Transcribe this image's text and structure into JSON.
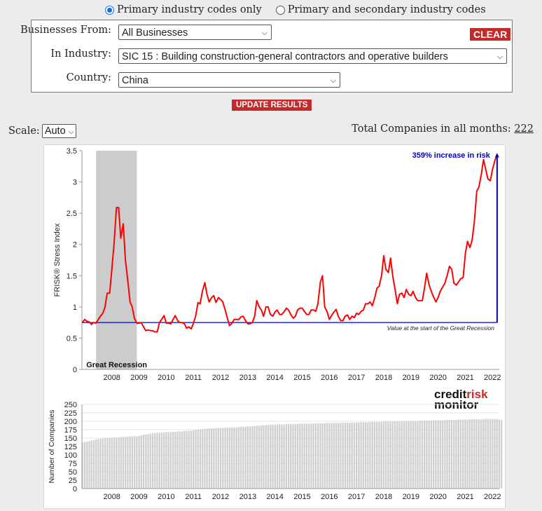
{
  "filters": {
    "radio_primary": "Primary industry codes only",
    "radio_secondary": "Primary and secondary industry codes",
    "businesses_label": "Businesses From:",
    "businesses_value": "All Businesses",
    "industry_label": "In Industry:",
    "industry_value": "SIC 15 : Building construction-general contractors and operative builders",
    "country_label": "Country:",
    "country_value": "China",
    "clear_label": "CLEAR",
    "update_label": "UPDATE RESULTS"
  },
  "scale": {
    "label": "Scale:",
    "value": "Auto"
  },
  "total": {
    "label": "Total Companies in all months:",
    "value": "222"
  },
  "colors": {
    "accent": "#c52a2a",
    "series": "#ff0000",
    "baseline": "#0000cc",
    "recession": "#cccccc",
    "bars": "#cfcfcf"
  },
  "chart_data": [
    {
      "type": "line",
      "ylabel": "FRISK® Stress Index",
      "ylim": [
        0,
        3.5
      ],
      "yticks": [
        "0",
        "0.5",
        "1",
        "1.5",
        "2",
        "2.5",
        "3",
        "3.5"
      ],
      "xlim": [
        2007.4,
        2022.75
      ],
      "xticks": [
        "2008",
        "2009",
        "2010",
        "2011",
        "2012",
        "2013",
        "2014",
        "2015",
        "2016",
        "2017",
        "2018",
        "2019",
        "2020",
        "2021",
        "2022"
      ],
      "recession": {
        "start": 2007.92,
        "end": 2009.42,
        "label": "Great Recession"
      },
      "baseline": {
        "value": 0.75,
        "label": "Value at the start of the Great Recession"
      },
      "annotation": {
        "label": "359% increase in risk",
        "from": 0.75,
        "to": 3.45,
        "at": 2022.67
      },
      "logo": [
        "credit",
        "risk",
        "monitor"
      ],
      "series": [
        {
          "name": "FRISK Stress Index",
          "points": [
            [
              2007.42,
              0.75
            ],
            [
              2007.5,
              0.8
            ],
            [
              2007.58,
              0.77
            ],
            [
              2007.67,
              0.76
            ],
            [
              2007.75,
              0.72
            ],
            [
              2007.83,
              0.75
            ],
            [
              2007.92,
              0.74
            ],
            [
              2008.0,
              0.8
            ],
            [
              2008.08,
              0.85
            ],
            [
              2008.17,
              0.9
            ],
            [
              2008.25,
              1.0
            ],
            [
              2008.33,
              1.22
            ],
            [
              2008.42,
              1.22
            ],
            [
              2008.5,
              1.6
            ],
            [
              2008.58,
              2.0
            ],
            [
              2008.67,
              2.59
            ],
            [
              2008.75,
              2.59
            ],
            [
              2008.83,
              2.1
            ],
            [
              2008.92,
              2.33
            ],
            [
              2009.0,
              1.75
            ],
            [
              2009.08,
              1.45
            ],
            [
              2009.17,
              1.08
            ],
            [
              2009.25,
              1.0
            ],
            [
              2009.33,
              0.82
            ],
            [
              2009.42,
              0.74
            ],
            [
              2009.5,
              0.74
            ],
            [
              2009.58,
              0.75
            ],
            [
              2009.67,
              0.68
            ],
            [
              2009.75,
              0.62
            ],
            [
              2009.83,
              0.63
            ],
            [
              2009.92,
              0.62
            ],
            [
              2010.0,
              0.62
            ],
            [
              2010.08,
              0.6
            ],
            [
              2010.17,
              0.6
            ],
            [
              2010.25,
              0.75
            ],
            [
              2010.33,
              0.8
            ],
            [
              2010.42,
              0.86
            ],
            [
              2010.5,
              0.74
            ],
            [
              2010.58,
              0.74
            ],
            [
              2010.67,
              0.73
            ],
            [
              2010.75,
              0.8
            ],
            [
              2010.83,
              0.86
            ],
            [
              2010.92,
              0.78
            ],
            [
              2011.0,
              0.75
            ],
            [
              2011.08,
              0.75
            ],
            [
              2011.17,
              0.73
            ],
            [
              2011.25,
              0.66
            ],
            [
              2011.33,
              0.68
            ],
            [
              2011.42,
              0.65
            ],
            [
              2011.5,
              0.74
            ],
            [
              2011.58,
              0.85
            ],
            [
              2011.67,
              1.07
            ],
            [
              2011.75,
              1.05
            ],
            [
              2011.83,
              1.25
            ],
            [
              2011.92,
              1.39
            ],
            [
              2012.0,
              1.2
            ],
            [
              2012.08,
              1.08
            ],
            [
              2012.17,
              1.15
            ],
            [
              2012.25,
              1.18
            ],
            [
              2012.33,
              1.07
            ],
            [
              2012.42,
              1.15
            ],
            [
              2012.5,
              1.12
            ],
            [
              2012.58,
              1.08
            ],
            [
              2012.67,
              0.95
            ],
            [
              2012.75,
              0.82
            ],
            [
              2012.83,
              0.7
            ],
            [
              2012.92,
              0.74
            ],
            [
              2013.0,
              0.8
            ],
            [
              2013.08,
              0.8
            ],
            [
              2013.17,
              0.8
            ],
            [
              2013.25,
              0.84
            ],
            [
              2013.33,
              0.85
            ],
            [
              2013.42,
              0.78
            ],
            [
              2013.5,
              0.73
            ],
            [
              2013.58,
              0.73
            ],
            [
              2013.67,
              0.75
            ],
            [
              2013.75,
              0.85
            ],
            [
              2013.83,
              1.1
            ],
            [
              2013.92,
              1.0
            ],
            [
              2014.0,
              0.95
            ],
            [
              2014.08,
              0.85
            ],
            [
              2014.17,
              1.0
            ],
            [
              2014.25,
              1.0
            ],
            [
              2014.33,
              0.88
            ],
            [
              2014.42,
              0.85
            ],
            [
              2014.5,
              0.92
            ],
            [
              2014.58,
              0.95
            ],
            [
              2014.67,
              0.88
            ],
            [
              2014.75,
              0.88
            ],
            [
              2014.83,
              0.92
            ],
            [
              2014.92,
              0.98
            ],
            [
              2015.0,
              0.95
            ],
            [
              2015.08,
              0.88
            ],
            [
              2015.17,
              0.82
            ],
            [
              2015.25,
              0.85
            ],
            [
              2015.33,
              0.95
            ],
            [
              2015.42,
              0.98
            ],
            [
              2015.5,
              0.98
            ],
            [
              2015.58,
              0.93
            ],
            [
              2015.67,
              0.88
            ],
            [
              2015.75,
              0.88
            ],
            [
              2015.83,
              0.95
            ],
            [
              2015.92,
              0.95
            ],
            [
              2016.0,
              0.93
            ],
            [
              2016.08,
              1.05
            ],
            [
              2016.17,
              1.4
            ],
            [
              2016.25,
              1.5
            ],
            [
              2016.33,
              1.0
            ],
            [
              2016.42,
              0.92
            ],
            [
              2016.5,
              0.8
            ],
            [
              2016.58,
              0.86
            ],
            [
              2016.67,
              0.92
            ],
            [
              2016.75,
              0.96
            ],
            [
              2016.83,
              0.85
            ],
            [
              2016.92,
              0.78
            ],
            [
              2017.0,
              0.78
            ],
            [
              2017.08,
              0.85
            ],
            [
              2017.17,
              0.87
            ],
            [
              2017.25,
              0.8
            ],
            [
              2017.33,
              0.85
            ],
            [
              2017.42,
              0.83
            ],
            [
              2017.5,
              0.9
            ],
            [
              2017.58,
              0.88
            ],
            [
              2017.67,
              0.93
            ],
            [
              2017.75,
              0.95
            ],
            [
              2017.83,
              1.05
            ],
            [
              2017.92,
              1.05
            ],
            [
              2018.0,
              1.08
            ],
            [
              2018.08,
              1.02
            ],
            [
              2018.17,
              1.15
            ],
            [
              2018.25,
              1.3
            ],
            [
              2018.33,
              1.33
            ],
            [
              2018.42,
              1.5
            ],
            [
              2018.5,
              1.82
            ],
            [
              2018.58,
              1.6
            ],
            [
              2018.67,
              1.55
            ],
            [
              2018.75,
              1.78
            ],
            [
              2018.83,
              1.5
            ],
            [
              2018.92,
              1.27
            ],
            [
              2019.0,
              1.05
            ],
            [
              2019.08,
              1.2
            ],
            [
              2019.17,
              1.22
            ],
            [
              2019.25,
              1.15
            ],
            [
              2019.33,
              1.28
            ],
            [
              2019.42,
              1.2
            ],
            [
              2019.5,
              1.18
            ],
            [
              2019.58,
              1.25
            ],
            [
              2019.67,
              1.15
            ],
            [
              2019.75,
              1.1
            ],
            [
              2019.83,
              1.1
            ],
            [
              2019.92,
              1.1
            ],
            [
              2020.0,
              1.3
            ],
            [
              2020.08,
              1.54
            ],
            [
              2020.17,
              1.35
            ],
            [
              2020.25,
              1.25
            ],
            [
              2020.33,
              1.16
            ],
            [
              2020.42,
              1.08
            ],
            [
              2020.5,
              1.15
            ],
            [
              2020.58,
              1.25
            ],
            [
              2020.67,
              1.32
            ],
            [
              2020.75,
              1.38
            ],
            [
              2020.83,
              1.5
            ],
            [
              2020.92,
              1.65
            ],
            [
              2021.0,
              1.6
            ],
            [
              2021.08,
              1.38
            ],
            [
              2021.17,
              1.35
            ],
            [
              2021.25,
              1.4
            ],
            [
              2021.33,
              1.45
            ],
            [
              2021.42,
              1.47
            ],
            [
              2021.5,
              1.85
            ],
            [
              2021.58,
              2.05
            ],
            [
              2021.67,
              1.95
            ],
            [
              2021.75,
              2.07
            ],
            [
              2021.83,
              2.35
            ],
            [
              2021.92,
              2.85
            ],
            [
              2022.0,
              2.92
            ],
            [
              2022.08,
              3.1
            ],
            [
              2022.17,
              3.36
            ],
            [
              2022.25,
              3.2
            ],
            [
              2022.33,
              3.05
            ],
            [
              2022.42,
              3.02
            ],
            [
              2022.5,
              3.2
            ],
            [
              2022.58,
              3.33
            ],
            [
              2022.67,
              3.45
            ]
          ]
        }
      ]
    },
    {
      "type": "bar",
      "ylabel": "Number of Companies",
      "ylim": [
        0,
        250
      ],
      "yticks": [
        "0",
        "25",
        "50",
        "75",
        "100",
        "125",
        "150",
        "175",
        "200",
        "225",
        "250"
      ],
      "xlim": [
        2007.4,
        2022.75
      ],
      "xticks": [
        "2008",
        "2009",
        "2010",
        "2011",
        "2012",
        "2013",
        "2014",
        "2015",
        "2016",
        "2017",
        "2018",
        "2019",
        "2020",
        "2021",
        "2022"
      ],
      "start": 2007.42,
      "step": 0.0833,
      "values": [
        138,
        139,
        140,
        141,
        143,
        144,
        146,
        147,
        148,
        149,
        150,
        150,
        151,
        151,
        152,
        152,
        152,
        153,
        153,
        154,
        154,
        155,
        155,
        156,
        156,
        157,
        158,
        160,
        161,
        162,
        163,
        164,
        165,
        166,
        166,
        167,
        167,
        168,
        168,
        168,
        169,
        169,
        170,
        170,
        170,
        171,
        171,
        172,
        172,
        173,
        174,
        175,
        176,
        177,
        178,
        178,
        179,
        179,
        179,
        180,
        180,
        180,
        180,
        181,
        181,
        181,
        182,
        182,
        182,
        183,
        183,
        184,
        184,
        185,
        185,
        186,
        186,
        187,
        187,
        188,
        188,
        189,
        189,
        190,
        190,
        190,
        191,
        191,
        191,
        191,
        192,
        192,
        192,
        192,
        192,
        192,
        193,
        193,
        193,
        193,
        193,
        193,
        194,
        194,
        194,
        194,
        194,
        194,
        195,
        195,
        195,
        195,
        195,
        195,
        195,
        196,
        196,
        196,
        196,
        196,
        196,
        197,
        197,
        197,
        197,
        197,
        197,
        198,
        198,
        198,
        198,
        198,
        198,
        199,
        199,
        199,
        199,
        199,
        200,
        200,
        200,
        200,
        200,
        201,
        201,
        201,
        201,
        201,
        201,
        202,
        202,
        202,
        202,
        202,
        202,
        203,
        203,
        203,
        203,
        203,
        203,
        204,
        204,
        204,
        204,
        204,
        205,
        205,
        205,
        205,
        205,
        206,
        206,
        206,
        206,
        206,
        206,
        206,
        207,
        207,
        207,
        207,
        207,
        207,
        205,
        204
      ]
    }
  ]
}
